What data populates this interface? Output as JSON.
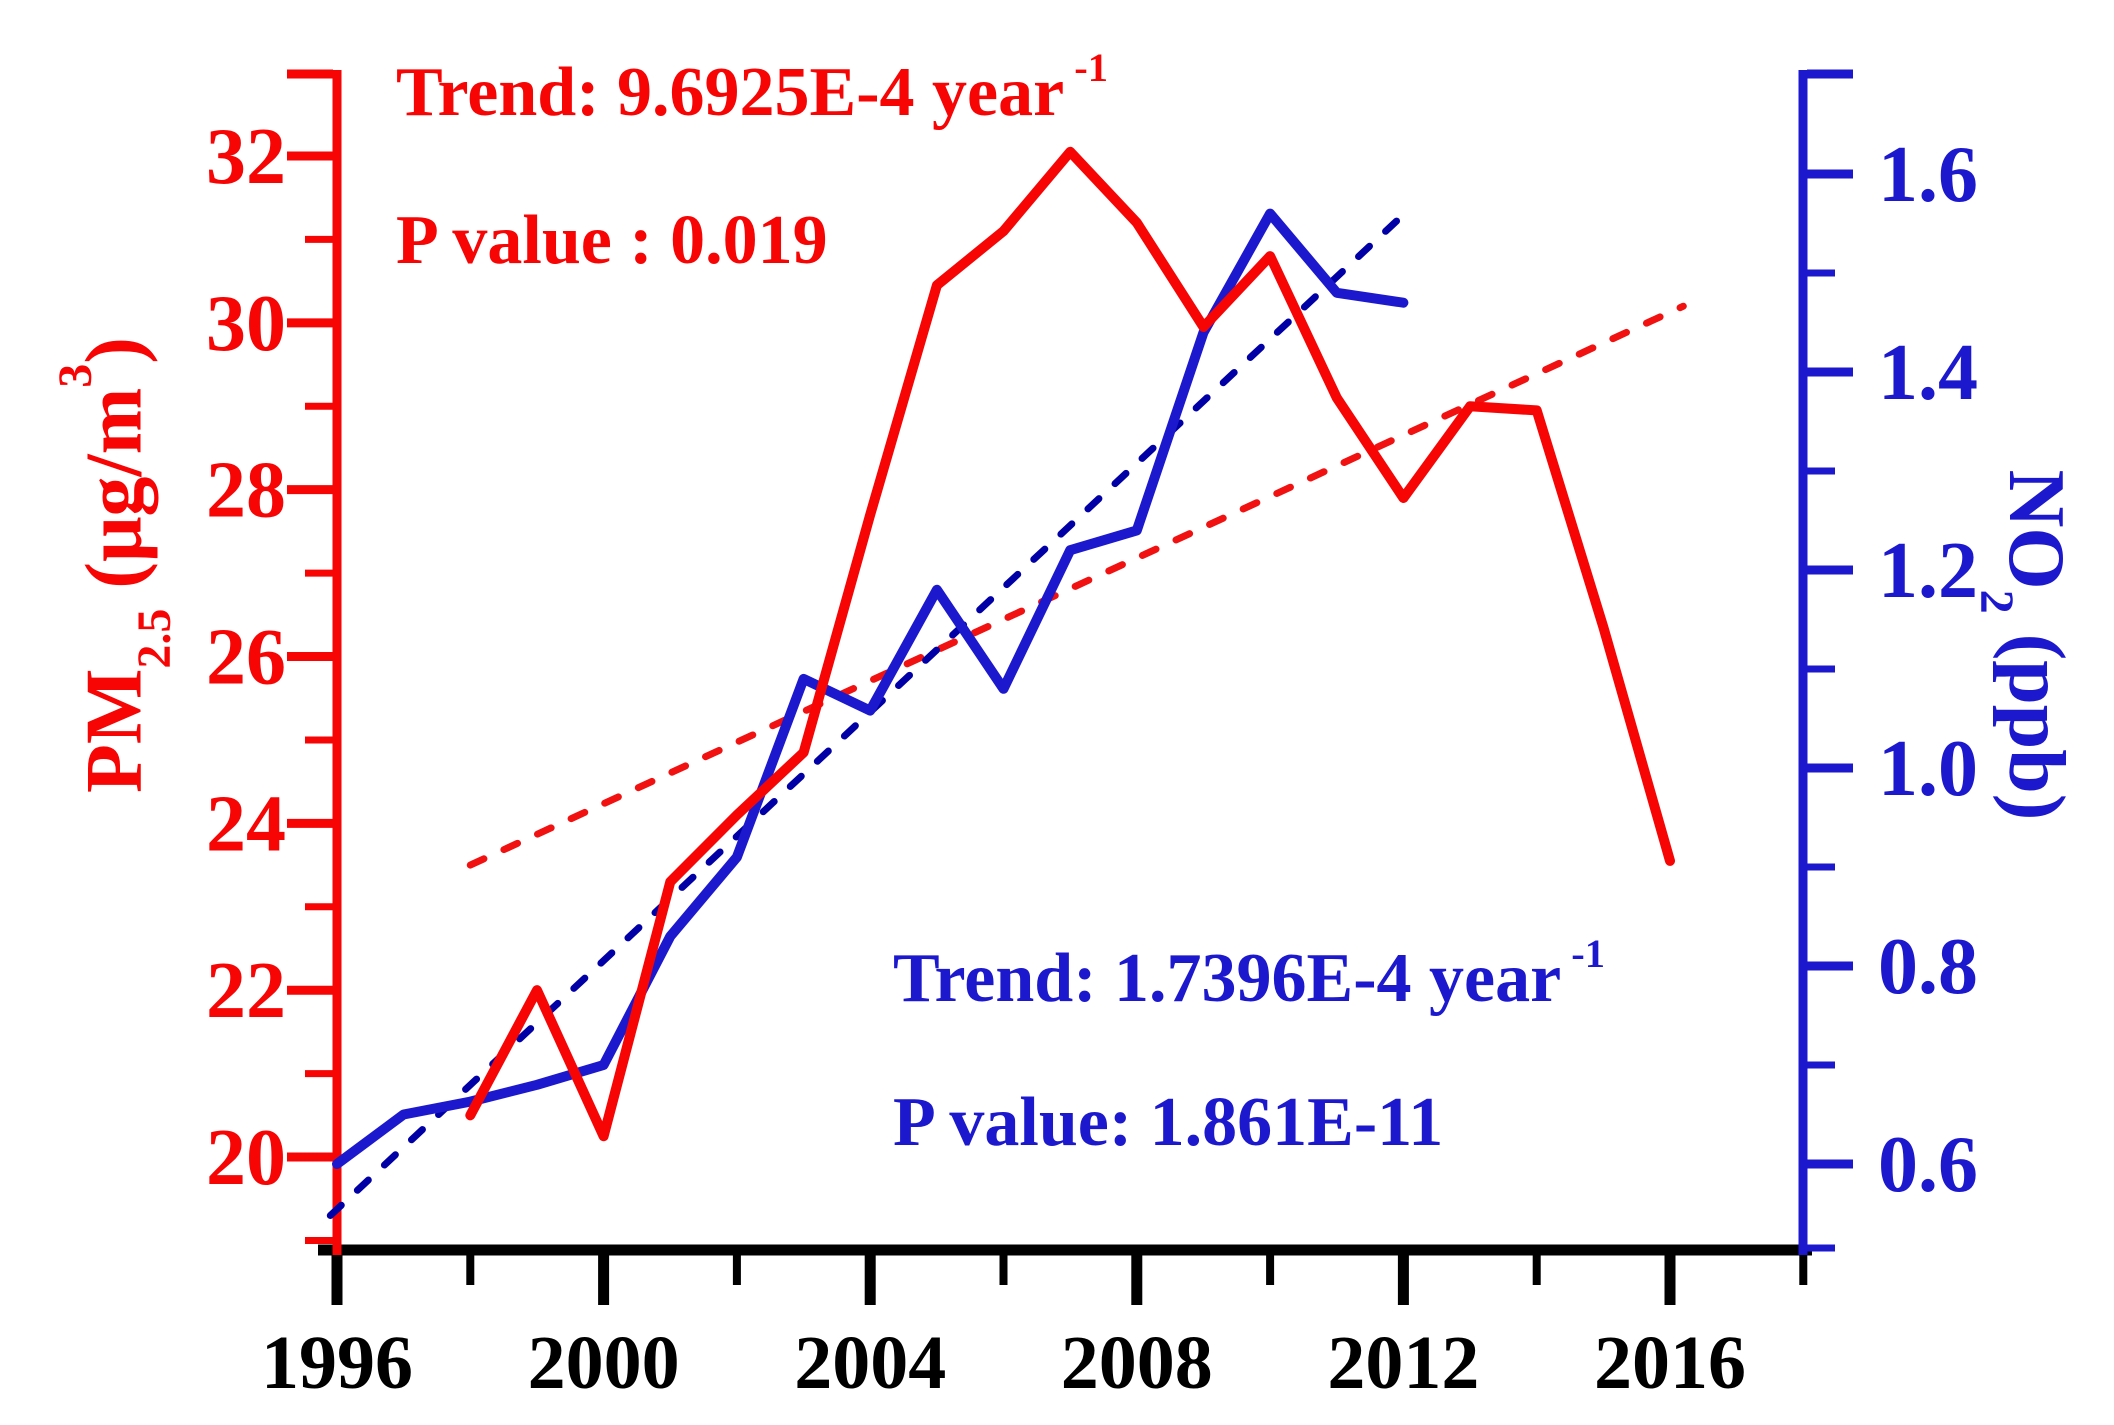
{
  "figure": {
    "background": "#ffffff",
    "accent_red": "#f70505",
    "accent_blue": "#1c18cd",
    "dashed_red": "#f21111",
    "dashed_blue": "#0000a6",
    "axis_black": "#000000"
  },
  "annotations": {
    "pm25_trend": {
      "text": "Trend: 9.6925E-4 year",
      "sup": "-1"
    },
    "pm25_p": {
      "text": "P value : 0.019"
    },
    "no2_trend": {
      "text": "Trend: 1.7396E-4 year",
      "sup": "-1"
    },
    "no2_p": {
      "text": "P value: 1.861E-11"
    }
  },
  "left_axis_title": {
    "p1": "PM",
    "sub": "2.5",
    "p2": " (μg/m",
    "sup": "3",
    "p3": ")"
  },
  "right_axis_title": {
    "p1": "NO",
    "sub": "2",
    "p2": " (ppb)"
  },
  "chart_data": {
    "type": "line",
    "title": "",
    "xlabel": "",
    "x_axis": {
      "range": [
        1996,
        2018
      ],
      "ticks_major": [
        1996,
        2000,
        2004,
        2008,
        2012,
        2016
      ],
      "ticks_minor": [
        1998,
        2002,
        2006,
        2010,
        2014,
        2018
      ],
      "tick_labels": [
        "1996",
        "2000",
        "2004",
        "2008",
        "2012",
        "2016"
      ]
    },
    "y_left_axis": {
      "label": "PM2.5 (μg/m3)",
      "color": "#f70505",
      "range": [
        18.9,
        33.0
      ],
      "ticks_major": [
        32,
        30,
        28,
        26,
        24,
        22,
        20
      ],
      "ticks_minor": [
        31,
        29,
        27,
        25,
        23,
        21,
        19
      ],
      "tick_labels": [
        "32",
        "30",
        "28",
        "26",
        "24",
        "22",
        "20"
      ]
    },
    "y_right_axis": {
      "label": "NO2 (ppb)",
      "color": "#1c18cd",
      "range": [
        0.51,
        1.7
      ],
      "ticks_major": [
        1.6,
        1.4,
        1.2,
        1.0,
        0.8,
        0.6
      ],
      "ticks_minor": [
        1.5,
        1.3,
        1.1,
        0.9,
        0.7
      ],
      "tick_labels": [
        "1.6",
        "1.4",
        "1.2",
        "1.0",
        "0.8",
        "0.6"
      ]
    },
    "legend": "none",
    "grid": false,
    "series": [
      {
        "id": "pm25_trend_line",
        "name": "PM2.5 linear trend",
        "axis": "left",
        "style": "dashed",
        "color": "#f21111",
        "points": [
          [
            1998.0,
            23.5
          ],
          [
            2016.2,
            30.2
          ]
        ]
      },
      {
        "id": "no2_trend_line",
        "name": "NO2 linear trend",
        "axis": "right",
        "style": "dashed",
        "color": "#0000a6",
        "points": [
          [
            1995.9,
            0.548
          ],
          [
            2012.05,
            1.562
          ]
        ]
      },
      {
        "id": "no2",
        "name": "NO2",
        "axis": "right",
        "style": "solid",
        "color": "#1c18cd",
        "points": [
          [
            1996,
            0.6
          ],
          [
            1997,
            0.65
          ],
          [
            1998,
            0.663
          ],
          [
            1999,
            0.68
          ],
          [
            2000,
            0.7
          ],
          [
            2001,
            0.83
          ],
          [
            2002,
            0.91
          ],
          [
            2003,
            1.09
          ],
          [
            2004,
            1.058
          ],
          [
            2005,
            1.18
          ],
          [
            2006,
            1.08
          ],
          [
            2007,
            1.22
          ],
          [
            2008,
            1.24
          ],
          [
            2009,
            1.44
          ],
          [
            2010,
            1.56
          ],
          [
            2011,
            1.48
          ],
          [
            2012,
            1.47
          ]
        ]
      },
      {
        "id": "pm25",
        "name": "PM2.5",
        "axis": "left",
        "style": "solid",
        "color": "#f70505",
        "points": [
          [
            1998,
            20.5
          ],
          [
            1999,
            22.0
          ],
          [
            2000,
            20.25
          ],
          [
            2001,
            23.3
          ],
          [
            2002,
            24.1
          ],
          [
            2003,
            24.85
          ],
          [
            2004,
            27.7
          ],
          [
            2005,
            30.45
          ],
          [
            2006,
            31.1
          ],
          [
            2007,
            32.05
          ],
          [
            2008,
            31.2
          ],
          [
            2009,
            29.95
          ],
          [
            2010,
            30.8
          ],
          [
            2011,
            29.1
          ],
          [
            2012,
            27.9
          ],
          [
            2013,
            29.0
          ],
          [
            2014,
            28.95
          ],
          [
            2015,
            26.35
          ],
          [
            2016,
            23.55
          ]
        ]
      }
    ]
  }
}
